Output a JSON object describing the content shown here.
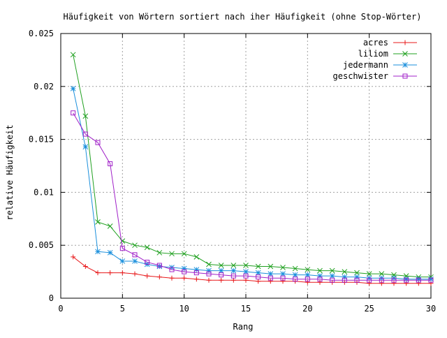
{
  "chart_data": {
    "type": "line",
    "title": "Häufigkeit von Wörtern sortiert nach iher Häufigkeit (ohne Stop-Wörter)",
    "xlabel": "Rang",
    "ylabel": "relative Häufigkeit",
    "xlim": [
      0,
      30
    ],
    "ylim": [
      0,
      0.025
    ],
    "xticks": [
      0,
      5,
      10,
      15,
      20,
      25,
      30
    ],
    "yticks": [
      0,
      0.005,
      0.01,
      0.015,
      0.02,
      0.025
    ],
    "xtick_labels": [
      "0",
      "5",
      "10",
      "15",
      "20",
      "25",
      "30"
    ],
    "ytick_labels": [
      "0",
      "0.005",
      "0.01",
      "0.015",
      "0.02",
      "0.025"
    ],
    "grid": true,
    "legend_position": "top-right",
    "x": [
      1,
      2,
      3,
      4,
      5,
      6,
      7,
      8,
      9,
      10,
      11,
      12,
      13,
      14,
      15,
      16,
      17,
      18,
      19,
      20,
      21,
      22,
      23,
      24,
      25,
      26,
      27,
      28,
      29,
      30
    ],
    "series": [
      {
        "name": "acres",
        "color": "#e8181a",
        "marker": "plus",
        "values": [
          0.0039,
          0.003,
          0.0024,
          0.0024,
          0.0024,
          0.0023,
          0.0021,
          0.002,
          0.0019,
          0.0019,
          0.0018,
          0.0017,
          0.0017,
          0.0017,
          0.0017,
          0.0016,
          0.0016,
          0.0016,
          0.0016,
          0.0015,
          0.0015,
          0.0015,
          0.0015,
          0.0015,
          0.0014,
          0.0014,
          0.0014,
          0.0014,
          0.0014,
          0.0014
        ]
      },
      {
        "name": "liliom",
        "color": "#20a020",
        "marker": "cross",
        "values": [
          0.023,
          0.0172,
          0.0072,
          0.0068,
          0.0054,
          0.005,
          0.0048,
          0.0043,
          0.0042,
          0.0042,
          0.0039,
          0.0032,
          0.0031,
          0.0031,
          0.0031,
          0.003,
          0.003,
          0.0029,
          0.0028,
          0.0027,
          0.0026,
          0.0026,
          0.0025,
          0.0024,
          0.0023,
          0.0023,
          0.0022,
          0.0021,
          0.002,
          0.002
        ]
      },
      {
        "name": "jedermann",
        "color": "#1a8fdc",
        "marker": "star",
        "values": [
          0.0198,
          0.0143,
          0.0044,
          0.0043,
          0.0035,
          0.0035,
          0.0032,
          0.003,
          0.0029,
          0.0028,
          0.0027,
          0.0026,
          0.0026,
          0.0026,
          0.0025,
          0.0024,
          0.0023,
          0.0023,
          0.0022,
          0.0022,
          0.0021,
          0.0021,
          0.002,
          0.002,
          0.0019,
          0.0019,
          0.0019,
          0.0018,
          0.0018,
          0.0018
        ]
      },
      {
        "name": "geschwister",
        "color": "#a020c8",
        "marker": "square",
        "values": [
          0.0175,
          0.0155,
          0.0147,
          0.0127,
          0.0047,
          0.0041,
          0.0034,
          0.0031,
          0.0027,
          0.0025,
          0.0024,
          0.0023,
          0.0022,
          0.0021,
          0.0021,
          0.002,
          0.0019,
          0.0019,
          0.0018,
          0.0018,
          0.0018,
          0.0017,
          0.0017,
          0.0017,
          0.0017,
          0.0017,
          0.0017,
          0.0017,
          0.0017,
          0.0017
        ]
      }
    ]
  }
}
